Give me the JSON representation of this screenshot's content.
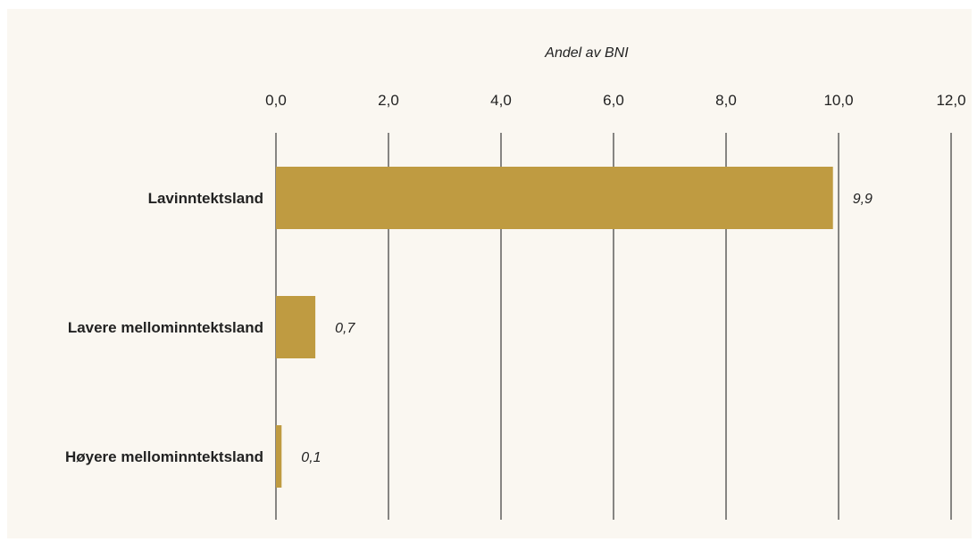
{
  "chart_data": {
    "type": "bar",
    "orientation": "horizontal",
    "xlabel": "Andel av BNI",
    "xlim": [
      0,
      12
    ],
    "x_ticks": [
      "0,0",
      "2,0",
      "4,0",
      "6,0",
      "8,0",
      "10,0",
      "12,0"
    ],
    "categories": [
      "Lavinntektsland",
      "Lavere mellominntektsland",
      "Høyere mellominntektsland"
    ],
    "values": [
      9.9,
      0.7,
      0.1
    ],
    "value_labels": [
      "9,9",
      "0,7",
      "0,1"
    ],
    "grid": true,
    "axis_position": "top"
  },
  "colors": {
    "bar": "#bf9b41",
    "background": "#faf7f1",
    "gridline": "#3a3a3a"
  }
}
